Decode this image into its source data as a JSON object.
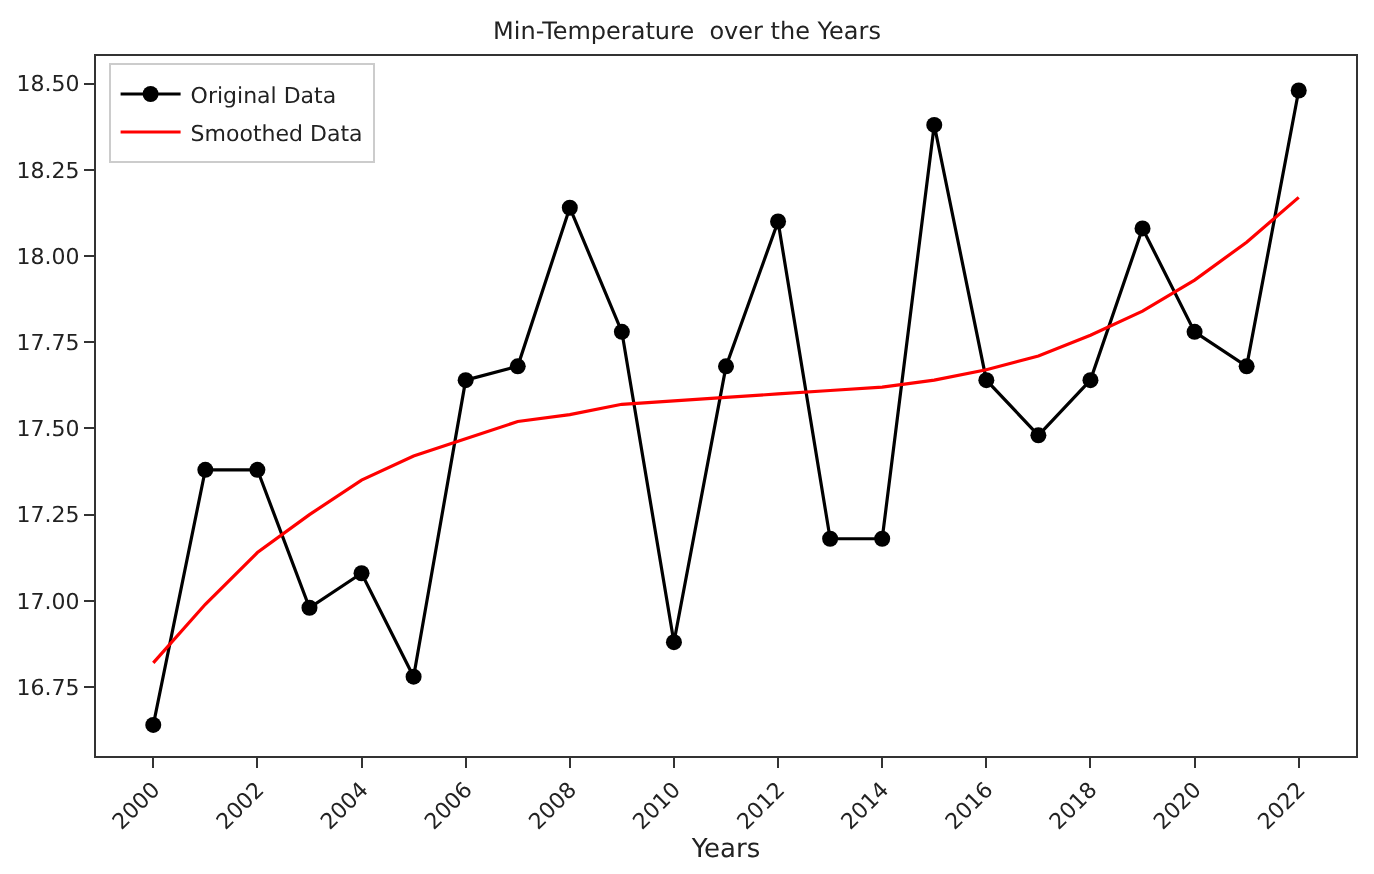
{
  "chart_data": {
    "type": "line",
    "title": "Min-Temperature  over the Years",
    "xlabel": "Years",
    "x": [
      2000,
      2001,
      2002,
      2003,
      2004,
      2005,
      2006,
      2007,
      2008,
      2009,
      2010,
      2011,
      2012,
      2013,
      2014,
      2015,
      2016,
      2017,
      2018,
      2019,
      2020,
      2021,
      2022
    ],
    "series": [
      {
        "name": "Original Data",
        "color": "#000000",
        "marker": "circle",
        "values": [
          16.64,
          17.38,
          17.38,
          16.98,
          17.08,
          16.78,
          17.64,
          17.68,
          18.14,
          17.78,
          16.88,
          17.68,
          18.1,
          17.18,
          17.18,
          18.38,
          17.64,
          17.48,
          17.64,
          18.08,
          17.78,
          17.68,
          18.48
        ]
      },
      {
        "name": "Smoothed Data",
        "color": "#ff0000",
        "marker": "none",
        "values": [
          16.82,
          16.99,
          17.14,
          17.25,
          17.35,
          17.42,
          17.47,
          17.52,
          17.54,
          17.57,
          17.58,
          17.59,
          17.6,
          17.61,
          17.62,
          17.64,
          17.67,
          17.71,
          17.77,
          17.84,
          17.93,
          18.04,
          18.17
        ]
      }
    ],
    "xlim": [
      1998.9,
      2023.1
    ],
    "xticks": [
      2000,
      2002,
      2004,
      2006,
      2008,
      2010,
      2012,
      2014,
      2016,
      2018,
      2020,
      2022
    ],
    "ylim": [
      16.55,
      18.58
    ],
    "yticks": [
      {
        "value": 16.75,
        "label": "16.75"
      },
      {
        "value": 17.0,
        "label": "17.00"
      },
      {
        "value": 17.25,
        "label": "17.25"
      },
      {
        "value": 17.5,
        "label": "17.50"
      },
      {
        "value": 17.75,
        "label": "17.75"
      },
      {
        "value": 18.0,
        "label": "18.00"
      },
      {
        "value": 18.25,
        "label": "18.25"
      },
      {
        "value": 18.5,
        "label": "18.50"
      }
    ],
    "grid": false,
    "legend": "top left"
  }
}
